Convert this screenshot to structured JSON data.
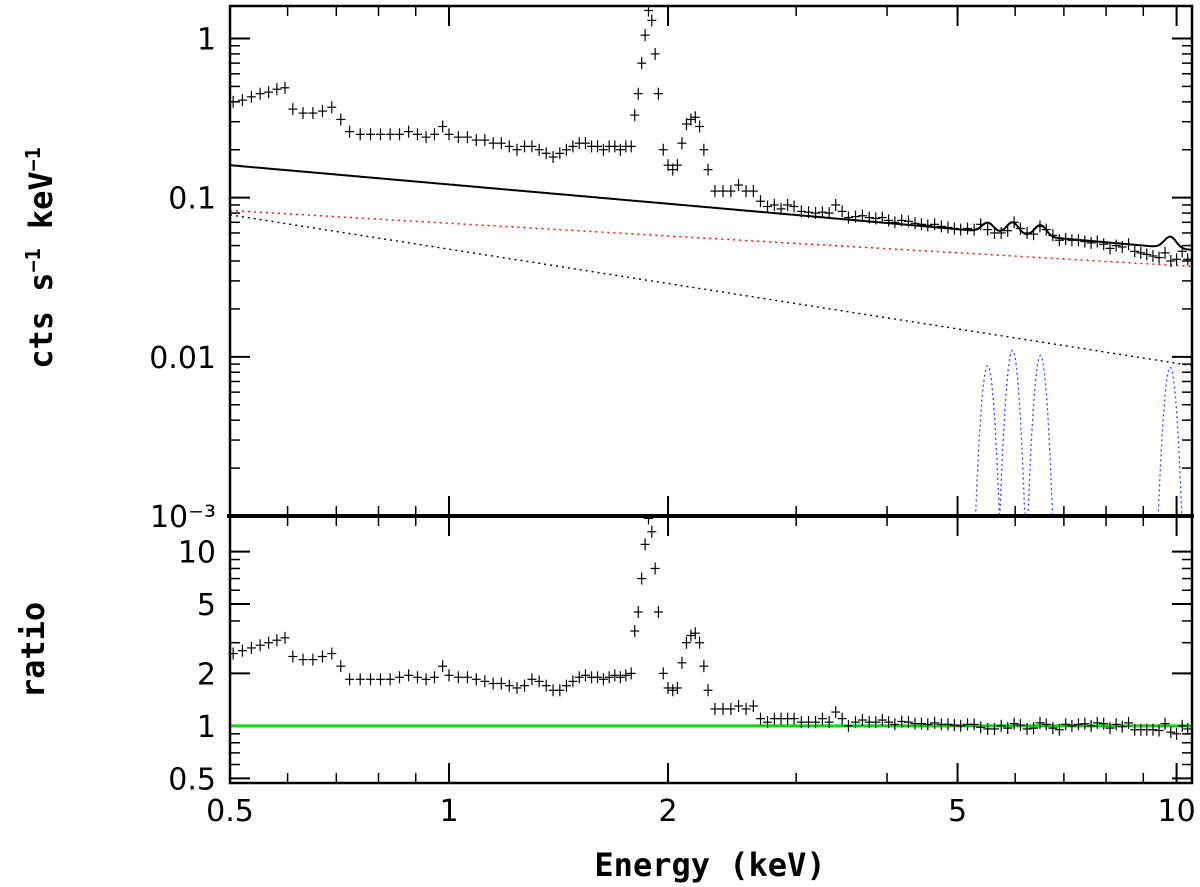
{
  "chart_data": [
    {
      "type": "scatter",
      "panel": "spectrum",
      "xscale": "log",
      "yscale": "log",
      "xlim": [
        0.5,
        10.5
      ],
      "ylim": [
        0.001,
        1.6
      ],
      "ylabel": "cts s⁻¹ keV⁻¹",
      "xlabel": "",
      "y_ticks": [
        {
          "value": 1,
          "label": "1"
        },
        {
          "value": 0.1,
          "label": "0.1"
        },
        {
          "value": 0.01,
          "label": "0.01"
        },
        {
          "value": 0.001,
          "label": "10⁻³"
        }
      ],
      "data_points": [
        [
          0.505,
          0.4
        ],
        [
          0.52,
          0.41
        ],
        [
          0.535,
          0.43
        ],
        [
          0.55,
          0.45
        ],
        [
          0.565,
          0.46
        ],
        [
          0.58,
          0.48
        ],
        [
          0.595,
          0.49
        ],
        [
          0.61,
          0.36
        ],
        [
          0.63,
          0.34
        ],
        [
          0.65,
          0.34
        ],
        [
          0.67,
          0.35
        ],
        [
          0.69,
          0.37
        ],
        [
          0.71,
          0.31
        ],
        [
          0.73,
          0.26
        ],
        [
          0.755,
          0.25
        ],
        [
          0.78,
          0.25
        ],
        [
          0.805,
          0.25
        ],
        [
          0.83,
          0.25
        ],
        [
          0.855,
          0.25
        ],
        [
          0.88,
          0.26
        ],
        [
          0.905,
          0.25
        ],
        [
          0.93,
          0.24
        ],
        [
          0.955,
          0.25
        ],
        [
          0.98,
          0.28
        ],
        [
          1.0,
          0.25
        ],
        [
          1.03,
          0.24
        ],
        [
          1.06,
          0.24
        ],
        [
          1.09,
          0.23
        ],
        [
          1.12,
          0.23
        ],
        [
          1.15,
          0.22
        ],
        [
          1.18,
          0.22
        ],
        [
          1.21,
          0.21
        ],
        [
          1.24,
          0.2
        ],
        [
          1.27,
          0.21
        ],
        [
          1.3,
          0.21
        ],
        [
          1.33,
          0.2
        ],
        [
          1.36,
          0.19
        ],
        [
          1.39,
          0.18
        ],
        [
          1.42,
          0.19
        ],
        [
          1.45,
          0.2
        ],
        [
          1.48,
          0.21
        ],
        [
          1.51,
          0.22
        ],
        [
          1.54,
          0.22
        ],
        [
          1.57,
          0.21
        ],
        [
          1.6,
          0.21
        ],
        [
          1.63,
          0.2
        ],
        [
          1.66,
          0.21
        ],
        [
          1.69,
          0.21
        ],
        [
          1.72,
          0.2
        ],
        [
          1.75,
          0.21
        ],
        [
          1.78,
          0.21
        ],
        [
          1.8,
          0.33
        ],
        [
          1.82,
          0.45
        ],
        [
          1.84,
          0.7
        ],
        [
          1.86,
          1.05
        ],
        [
          1.88,
          1.5
        ],
        [
          1.9,
          1.3
        ],
        [
          1.92,
          0.8
        ],
        [
          1.94,
          0.45
        ],
        [
          1.97,
          0.2
        ],
        [
          2.0,
          0.16
        ],
        [
          2.03,
          0.15
        ],
        [
          2.06,
          0.16
        ],
        [
          2.09,
          0.22
        ],
        [
          2.12,
          0.29
        ],
        [
          2.15,
          0.31
        ],
        [
          2.18,
          0.32
        ],
        [
          2.21,
          0.28
        ],
        [
          2.24,
          0.2
        ],
        [
          2.27,
          0.15
        ],
        [
          2.32,
          0.11
        ],
        [
          2.38,
          0.11
        ],
        [
          2.44,
          0.11
        ],
        [
          2.5,
          0.12
        ],
        [
          2.56,
          0.11
        ],
        [
          2.62,
          0.11
        ],
        [
          2.68,
          0.095
        ],
        [
          2.74,
          0.088
        ],
        [
          2.8,
          0.09
        ],
        [
          2.86,
          0.085
        ],
        [
          2.92,
          0.09
        ],
        [
          2.98,
          0.088
        ],
        [
          3.05,
          0.082
        ],
        [
          3.12,
          0.081
        ],
        [
          3.19,
          0.08
        ],
        [
          3.26,
          0.081
        ],
        [
          3.33,
          0.08
        ],
        [
          3.4,
          0.09
        ],
        [
          3.47,
          0.082
        ],
        [
          3.54,
          0.075
        ],
        [
          3.62,
          0.076
        ],
        [
          3.7,
          0.077
        ],
        [
          3.78,
          0.075
        ],
        [
          3.86,
          0.074
        ],
        [
          3.94,
          0.075
        ],
        [
          4.02,
          0.072
        ],
        [
          4.1,
          0.07
        ],
        [
          4.19,
          0.072
        ],
        [
          4.28,
          0.071
        ],
        [
          4.37,
          0.069
        ],
        [
          4.46,
          0.068
        ],
        [
          4.55,
          0.067
        ],
        [
          4.65,
          0.068
        ],
        [
          4.75,
          0.066
        ],
        [
          4.85,
          0.065
        ],
        [
          4.95,
          0.064
        ],
        [
          5.05,
          0.063
        ],
        [
          5.16,
          0.064
        ],
        [
          5.27,
          0.063
        ],
        [
          5.38,
          0.068
        ],
        [
          5.5,
          0.063
        ],
        [
          5.62,
          0.06
        ],
        [
          5.74,
          0.06
        ],
        [
          5.86,
          0.062
        ],
        [
          5.98,
          0.07
        ],
        [
          6.1,
          0.064
        ],
        [
          6.23,
          0.06
        ],
        [
          6.36,
          0.059
        ],
        [
          6.49,
          0.066
        ],
        [
          6.62,
          0.063
        ],
        [
          6.76,
          0.058
        ],
        [
          6.9,
          0.054
        ],
        [
          7.04,
          0.055
        ],
        [
          7.18,
          0.054
        ],
        [
          7.33,
          0.054
        ],
        [
          7.48,
          0.053
        ],
        [
          7.63,
          0.052
        ],
        [
          7.78,
          0.053
        ],
        [
          7.94,
          0.051
        ],
        [
          8.1,
          0.048
        ],
        [
          8.26,
          0.05
        ],
        [
          8.42,
          0.049
        ],
        [
          8.59,
          0.051
        ],
        [
          8.76,
          0.046
        ],
        [
          8.93,
          0.045
        ],
        [
          9.1,
          0.044
        ],
        [
          9.28,
          0.043
        ],
        [
          9.46,
          0.042
        ],
        [
          9.64,
          0.045
        ],
        [
          9.82,
          0.04
        ],
        [
          10.0,
          0.041
        ],
        [
          10.18,
          0.046
        ],
        [
          10.36,
          0.041
        ]
      ],
      "model_total": {
        "name": "total model",
        "x": [
          0.5,
          10.5
        ],
        "y": [
          0.16,
          0.047
        ],
        "lines_keV": [
          5.5,
          5.95,
          6.5,
          9.8
        ]
      },
      "model_red_continuum": {
        "name": "red continuum",
        "x": [
          0.5,
          10.5
        ],
        "y": [
          0.083,
          0.037
        ],
        "color": "#ff0000"
      },
      "model_black_continuum": {
        "name": "black continuum",
        "x": [
          0.5,
          10.5
        ],
        "y": [
          0.078,
          0.0088
        ],
        "color": "#000000"
      },
      "gaussian_lines": [
        {
          "center_keV": 5.5,
          "peak": 0.0088
        },
        {
          "center_keV": 5.95,
          "peak": 0.011
        },
        {
          "center_keV": 6.5,
          "peak": 0.0102
        },
        {
          "center_keV": 9.8,
          "peak": 0.0086
        }
      ]
    },
    {
      "type": "scatter",
      "panel": "ratio",
      "xscale": "log",
      "yscale": "log",
      "xlim": [
        0.5,
        10.5
      ],
      "ylim": [
        0.47,
        16
      ],
      "ylabel": "ratio",
      "xlabel": "Energy (keV)",
      "x_ticks": [
        {
          "value": 0.5,
          "label": "0.5"
        },
        {
          "value": 1,
          "label": "1"
        },
        {
          "value": 2,
          "label": "2"
        },
        {
          "value": 5,
          "label": "5"
        },
        {
          "value": 10,
          "label": "10"
        }
      ],
      "y_ticks": [
        {
          "value": 10,
          "label": "10"
        },
        {
          "value": 5,
          "label": "5"
        },
        {
          "value": 2,
          "label": "2"
        },
        {
          "value": 1,
          "label": "1"
        },
        {
          "value": 0.5,
          "label": "0.5"
        }
      ],
      "reference_line": {
        "y": 1,
        "color": "#00dd00"
      },
      "data_points": [
        [
          0.505,
          2.6
        ],
        [
          0.52,
          2.7
        ],
        [
          0.535,
          2.8
        ],
        [
          0.55,
          2.9
        ],
        [
          0.565,
          3.0
        ],
        [
          0.58,
          3.1
        ],
        [
          0.595,
          3.2
        ],
        [
          0.61,
          2.5
        ],
        [
          0.63,
          2.4
        ],
        [
          0.65,
          2.4
        ],
        [
          0.67,
          2.5
        ],
        [
          0.69,
          2.6
        ],
        [
          0.71,
          2.2
        ],
        [
          0.73,
          1.85
        ],
        [
          0.755,
          1.85
        ],
        [
          0.78,
          1.85
        ],
        [
          0.805,
          1.85
        ],
        [
          0.83,
          1.85
        ],
        [
          0.855,
          1.9
        ],
        [
          0.88,
          1.95
        ],
        [
          0.905,
          1.9
        ],
        [
          0.93,
          1.85
        ],
        [
          0.955,
          1.9
        ],
        [
          0.98,
          2.2
        ],
        [
          1.0,
          1.95
        ],
        [
          1.03,
          1.9
        ],
        [
          1.06,
          1.9
        ],
        [
          1.09,
          1.85
        ],
        [
          1.12,
          1.8
        ],
        [
          1.15,
          1.75
        ],
        [
          1.18,
          1.75
        ],
        [
          1.21,
          1.7
        ],
        [
          1.24,
          1.65
        ],
        [
          1.27,
          1.7
        ],
        [
          1.3,
          1.85
        ],
        [
          1.33,
          1.8
        ],
        [
          1.36,
          1.7
        ],
        [
          1.39,
          1.6
        ],
        [
          1.42,
          1.6
        ],
        [
          1.45,
          1.7
        ],
        [
          1.48,
          1.8
        ],
        [
          1.51,
          1.9
        ],
        [
          1.54,
          1.95
        ],
        [
          1.57,
          1.9
        ],
        [
          1.6,
          1.9
        ],
        [
          1.63,
          1.85
        ],
        [
          1.66,
          1.9
        ],
        [
          1.69,
          1.95
        ],
        [
          1.72,
          1.9
        ],
        [
          1.75,
          1.95
        ],
        [
          1.78,
          2.0
        ],
        [
          1.8,
          3.5
        ],
        [
          1.82,
          4.5
        ],
        [
          1.84,
          7.0
        ],
        [
          1.86,
          11.0
        ],
        [
          1.88,
          15.5
        ],
        [
          1.9,
          13.0
        ],
        [
          1.92,
          8.0
        ],
        [
          1.94,
          4.5
        ],
        [
          1.97,
          2.0
        ],
        [
          2.0,
          1.65
        ],
        [
          2.03,
          1.6
        ],
        [
          2.06,
          1.65
        ],
        [
          2.09,
          2.3
        ],
        [
          2.12,
          3.0
        ],
        [
          2.15,
          3.3
        ],
        [
          2.18,
          3.4
        ],
        [
          2.21,
          3.0
        ],
        [
          2.24,
          2.2
        ],
        [
          2.27,
          1.6
        ],
        [
          2.32,
          1.25
        ],
        [
          2.38,
          1.25
        ],
        [
          2.44,
          1.25
        ],
        [
          2.5,
          1.3
        ],
        [
          2.56,
          1.25
        ],
        [
          2.62,
          1.3
        ],
        [
          2.68,
          1.1
        ],
        [
          2.74,
          1.05
        ],
        [
          2.8,
          1.1
        ],
        [
          2.86,
          1.1
        ],
        [
          2.92,
          1.1
        ],
        [
          2.98,
          1.1
        ],
        [
          3.05,
          1.05
        ],
        [
          3.12,
          1.05
        ],
        [
          3.19,
          1.05
        ],
        [
          3.26,
          1.1
        ],
        [
          3.33,
          1.05
        ],
        [
          3.4,
          1.2
        ],
        [
          3.47,
          1.1
        ],
        [
          3.54,
          1.0
        ],
        [
          3.62,
          1.05
        ],
        [
          3.7,
          1.08
        ],
        [
          3.78,
          1.05
        ],
        [
          3.86,
          1.05
        ],
        [
          3.94,
          1.08
        ],
        [
          4.02,
          1.05
        ],
        [
          4.1,
          1.02
        ],
        [
          4.19,
          1.06
        ],
        [
          4.28,
          1.05
        ],
        [
          4.37,
          1.03
        ],
        [
          4.46,
          1.03
        ],
        [
          4.55,
          1.02
        ],
        [
          4.65,
          1.04
        ],
        [
          4.75,
          1.02
        ],
        [
          4.85,
          1.02
        ],
        [
          4.95,
          1.01
        ],
        [
          5.05,
          1.0
        ],
        [
          5.16,
          1.02
        ],
        [
          5.27,
          1.02
        ],
        [
          5.38,
          0.98
        ],
        [
          5.5,
          0.96
        ],
        [
          5.62,
          0.96
        ],
        [
          5.74,
          1.0
        ],
        [
          5.86,
          0.97
        ],
        [
          5.98,
          1.03
        ],
        [
          6.1,
          1.01
        ],
        [
          6.23,
          0.96
        ],
        [
          6.36,
          0.97
        ],
        [
          6.49,
          1.04
        ],
        [
          6.62,
          1.02
        ],
        [
          6.76,
          0.97
        ],
        [
          6.9,
          0.95
        ],
        [
          7.04,
          1.02
        ],
        [
          7.18,
          1.0
        ],
        [
          7.33,
          1.02
        ],
        [
          7.48,
          1.03
        ],
        [
          7.63,
          1.0
        ],
        [
          7.78,
          1.04
        ],
        [
          7.94,
          1.03
        ],
        [
          8.1,
          0.97
        ],
        [
          8.26,
          1.02
        ],
        [
          8.42,
          0.99
        ],
        [
          8.59,
          1.04
        ],
        [
          8.76,
          0.95
        ],
        [
          8.93,
          0.95
        ],
        [
          9.1,
          0.95
        ],
        [
          9.28,
          0.95
        ],
        [
          9.46,
          0.94
        ],
        [
          9.64,
          1.03
        ],
        [
          9.82,
          0.92
        ],
        [
          10.0,
          0.9
        ],
        [
          10.18,
          1.0
        ],
        [
          10.36,
          0.96
        ]
      ]
    }
  ]
}
